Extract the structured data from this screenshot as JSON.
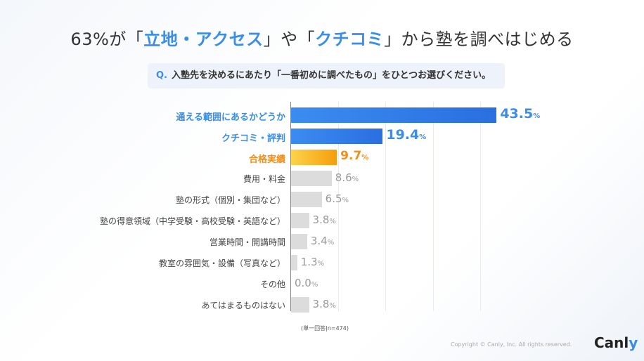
{
  "title": {
    "pre": "63%が「",
    "hl1": "立地・アクセス",
    "mid": "」や「",
    "hl2": "クチコミ",
    "post": "」から塾を調べはじめる"
  },
  "question": {
    "prefix": "Q.",
    "text": "入塾先を決めるにあたり「一番初めに調べたもの」をひとつお選びください。"
  },
  "chart_data": {
    "type": "bar",
    "orientation": "horizontal",
    "categories": [
      "通える範囲にあるかどうか",
      "クチコミ・評判",
      "合格実績",
      "費用・料金",
      "塾の形式（個別・集団など）",
      "塾の得意領域（中学受験・高校受験・英語など）",
      "営業時間・開講時間",
      "教室の雰囲気・設備（写真など）",
      "その他",
      "あてはまるものはない"
    ],
    "values": [
      43.5,
      19.4,
      9.7,
      8.6,
      6.5,
      3.8,
      3.4,
      1.3,
      0.0,
      3.8
    ],
    "unit": "%",
    "highlight": [
      "blue",
      "blue",
      "orange",
      "gray",
      "gray",
      "gray",
      "gray",
      "gray",
      "gray",
      "gray"
    ],
    "xlim": [
      0,
      50
    ],
    "grid": true
  },
  "note": "(単一回答|n=474)",
  "copyright": "Copyright © Canly, Inc. All rights reserved.",
  "logo": "Canly",
  "colors": {
    "blue": "#2f7fe8",
    "orange": "#f5a623",
    "gray": "#dcdcdc",
    "blue_text": "#3a8ee6",
    "orange_text": "#ef8f1c"
  }
}
